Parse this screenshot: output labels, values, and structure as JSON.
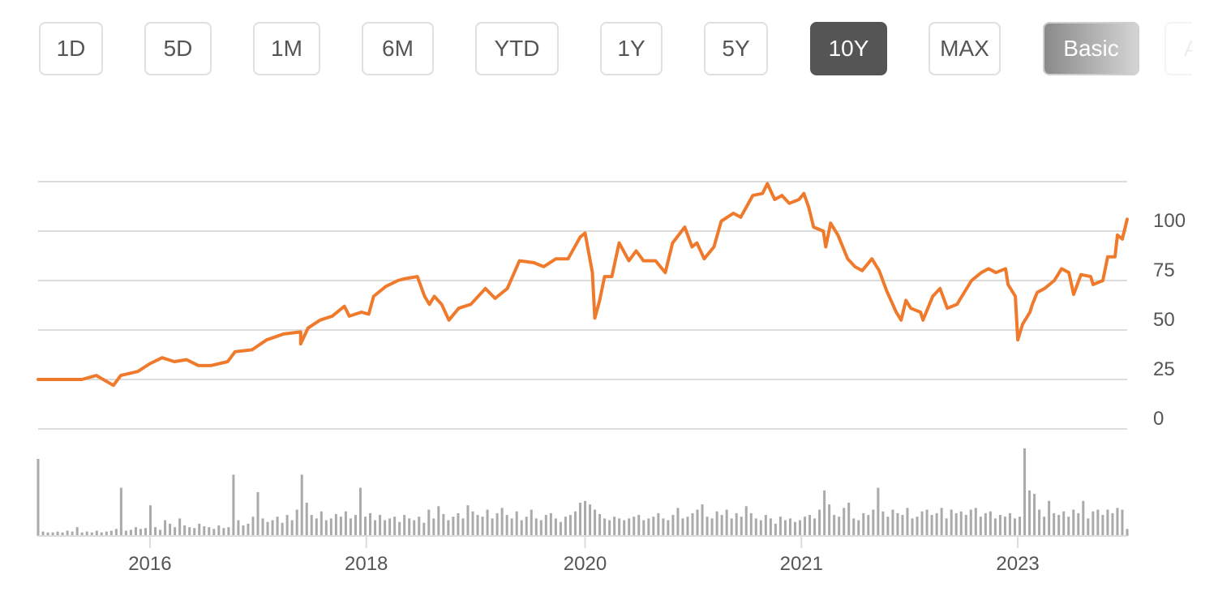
{
  "range_buttons": [
    {
      "label": "1D"
    },
    {
      "label": "5D"
    },
    {
      "label": "1M"
    },
    {
      "label": "6M"
    },
    {
      "label": "YTD"
    },
    {
      "label": "1Y"
    },
    {
      "label": "5Y"
    },
    {
      "label": "10Y",
      "selected": true
    },
    {
      "label": "MAX"
    }
  ],
  "mode_buttons": [
    {
      "label": "Basic",
      "active": true
    },
    {
      "label": "A"
    }
  ],
  "colors": {
    "line": "#f07a2b",
    "grid": "#dcdcdc",
    "volume": "#aaaaaa",
    "selected": "#555555"
  },
  "chart_data": {
    "type": "line",
    "title": "",
    "xlabel": "",
    "ylabel": "",
    "x_unit": "weeks from start",
    "xlim": [
      0,
      448
    ],
    "ylim": [
      0,
      125
    ],
    "grid": true,
    "y_ticks": [
      0,
      25,
      50,
      75,
      100
    ],
    "y_tick_labels": [
      "0",
      "25",
      "50",
      "75",
      "100"
    ],
    "x_ticks": [
      {
        "label": "2016",
        "x": 46
      },
      {
        "label": "2018",
        "x": 135
      },
      {
        "label": "2020",
        "x": 225
      },
      {
        "label": "2021",
        "x": 314
      },
      {
        "label": "2023",
        "x": 403
      }
    ],
    "price": [
      [
        0,
        25
      ],
      [
        18,
        25
      ],
      [
        24,
        27
      ],
      [
        31,
        22
      ],
      [
        34,
        27
      ],
      [
        41,
        29
      ],
      [
        46,
        33
      ],
      [
        51,
        36
      ],
      [
        56,
        34
      ],
      [
        61,
        35
      ],
      [
        66,
        32
      ],
      [
        71,
        32
      ],
      [
        78,
        34
      ],
      [
        81,
        39
      ],
      [
        88,
        40
      ],
      [
        94,
        45
      ],
      [
        101,
        48
      ],
      [
        108,
        49
      ],
      [
        108,
        43
      ],
      [
        111,
        51
      ],
      [
        116,
        55
      ],
      [
        121,
        57
      ],
      [
        126,
        62
      ],
      [
        128,
        57
      ],
      [
        133,
        59
      ],
      [
        136,
        58
      ],
      [
        138,
        67
      ],
      [
        143,
        72
      ],
      [
        148,
        75
      ],
      [
        151,
        76
      ],
      [
        156,
        77
      ],
      [
        159,
        67
      ],
      [
        161,
        63
      ],
      [
        163,
        67
      ],
      [
        166,
        63
      ],
      [
        169,
        55
      ],
      [
        173,
        61
      ],
      [
        178,
        63
      ],
      [
        184,
        71
      ],
      [
        188,
        66
      ],
      [
        193,
        71
      ],
      [
        198,
        85
      ],
      [
        204,
        84
      ],
      [
        208,
        82
      ],
      [
        213,
        86
      ],
      [
        218,
        86
      ],
      [
        223,
        97
      ],
      [
        225,
        99
      ],
      [
        228,
        79
      ],
      [
        229,
        56
      ],
      [
        231,
        65
      ],
      [
        233,
        77
      ],
      [
        236,
        77
      ],
      [
        239,
        94
      ],
      [
        243,
        85
      ],
      [
        246,
        90
      ],
      [
        249,
        85
      ],
      [
        254,
        85
      ],
      [
        258,
        79
      ],
      [
        261,
        94
      ],
      [
        266,
        102
      ],
      [
        269,
        92
      ],
      [
        271,
        94
      ],
      [
        274,
        86
      ],
      [
        278,
        92
      ],
      [
        281,
        105
      ],
      [
        286,
        109
      ],
      [
        289,
        107
      ],
      [
        294,
        118
      ],
      [
        298,
        119
      ],
      [
        300,
        124
      ],
      [
        303,
        116
      ],
      [
        306,
        118
      ],
      [
        309,
        114
      ],
      [
        313,
        116
      ],
      [
        315,
        119
      ],
      [
        317,
        112
      ],
      [
        319,
        102
      ],
      [
        323,
        100
      ],
      [
        324,
        92
      ],
      [
        326,
        104
      ],
      [
        329,
        98
      ],
      [
        333,
        86
      ],
      [
        336,
        82
      ],
      [
        339,
        80
      ],
      [
        343,
        86
      ],
      [
        346,
        80
      ],
      [
        349,
        70
      ],
      [
        353,
        59
      ],
      [
        355,
        55
      ],
      [
        357,
        65
      ],
      [
        359,
        61
      ],
      [
        363,
        59
      ],
      [
        364,
        55
      ],
      [
        368,
        67
      ],
      [
        371,
        71
      ],
      [
        374,
        61
      ],
      [
        378,
        63
      ],
      [
        381,
        69
      ],
      [
        384,
        75
      ],
      [
        388,
        79
      ],
      [
        391,
        81
      ],
      [
        394,
        79
      ],
      [
        398,
        81
      ],
      [
        399,
        73
      ],
      [
        402,
        67
      ],
      [
        403,
        45
      ],
      [
        405,
        53
      ],
      [
        408,
        59
      ],
      [
        409,
        63
      ],
      [
        411,
        69
      ],
      [
        414,
        71
      ],
      [
        418,
        75
      ],
      [
        421,
        81
      ],
      [
        424,
        79
      ],
      [
        426,
        68
      ],
      [
        429,
        78
      ],
      [
        433,
        77
      ],
      [
        434,
        73
      ],
      [
        438,
        75
      ],
      [
        440,
        87
      ],
      [
        443,
        87
      ],
      [
        444,
        98
      ],
      [
        446,
        96
      ],
      [
        448,
        106
      ]
    ],
    "volume": [
      88,
      5,
      4,
      4,
      5,
      4,
      6,
      5,
      10,
      4,
      5,
      4,
      6,
      4,
      5,
      6,
      8,
      55,
      6,
      7,
      10,
      8,
      9,
      35,
      10,
      7,
      18,
      14,
      10,
      20,
      12,
      10,
      9,
      14,
      11,
      10,
      8,
      12,
      9,
      10,
      70,
      18,
      12,
      14,
      22,
      50,
      20,
      16,
      18,
      22,
      15,
      24,
      18,
      30,
      70,
      38,
      24,
      20,
      28,
      18,
      20,
      25,
      22,
      28,
      20,
      24,
      55,
      22,
      26,
      18,
      24,
      18,
      20,
      22,
      16,
      24,
      20,
      18,
      22,
      15,
      30,
      20,
      34,
      25,
      18,
      22,
      26,
      20,
      35,
      28,
      24,
      22,
      30,
      20,
      26,
      32,
      24,
      20,
      28,
      18,
      22,
      30,
      20,
      18,
      24,
      26,
      20,
      16,
      22,
      24,
      28,
      38,
      40,
      36,
      30,
      25,
      20,
      18,
      22,
      20,
      18,
      20,
      22,
      24,
      18,
      20,
      22,
      26,
      20,
      18,
      24,
      32,
      20,
      22,
      26,
      30,
      36,
      22,
      20,
      28,
      24,
      30,
      20,
      26,
      22,
      34,
      26,
      20,
      18,
      24,
      20,
      14,
      22,
      18,
      20,
      16,
      18,
      22,
      24,
      20,
      30,
      52,
      36,
      24,
      22,
      32,
      38,
      20,
      18,
      26,
      24,
      30,
      55,
      28,
      22,
      30,
      26,
      24,
      32,
      20,
      22,
      28,
      30,
      24,
      26,
      32,
      20,
      30,
      26,
      28,
      24,
      30,
      32,
      22,
      26,
      28,
      20,
      24,
      22,
      26,
      20,
      22,
      100,
      52,
      48,
      30,
      22,
      40,
      26,
      24,
      28,
      22,
      30,
      26,
      40,
      20,
      28,
      30,
      24,
      30,
      26,
      32,
      30,
      8
    ]
  }
}
